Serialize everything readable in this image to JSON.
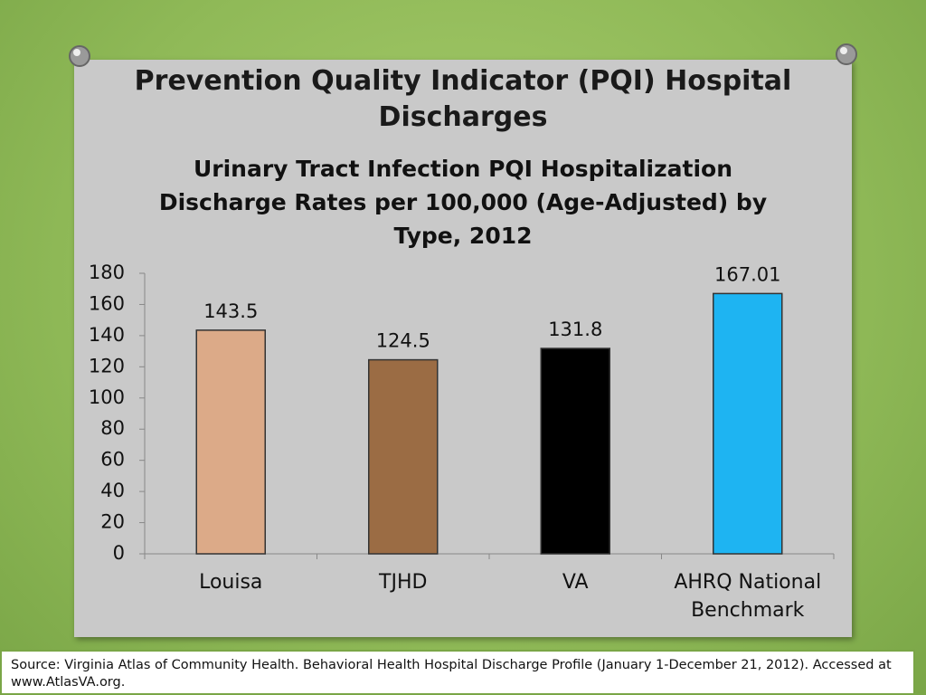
{
  "slide": {
    "title": "Prevention Quality Indicator (PQI) Hospital Discharges",
    "source": "Source: Virginia Atlas of Community Health. Behavioral Health Hospital Discharge Profile (January 1-December 21, 2012). Accessed at www.AtlasVA.org."
  },
  "chart_data": {
    "type": "bar",
    "title": "Urinary Tract Infection PQI Hospitalization Discharge Rates per 100,000 (Age-Adjusted) by Type, 2012",
    "categories": [
      "Louisa",
      "TJHD",
      "VA",
      "AHRQ National Benchmark"
    ],
    "values": [
      143.5,
      124.5,
      131.8,
      167.01
    ],
    "colors": [
      "#dcaa88",
      "#9b6c44",
      "#000000",
      "#1eb4f2"
    ],
    "ylim": [
      0,
      180
    ],
    "yticks": [
      0,
      20,
      40,
      60,
      80,
      100,
      120,
      140,
      160,
      180
    ],
    "grid": false
  }
}
